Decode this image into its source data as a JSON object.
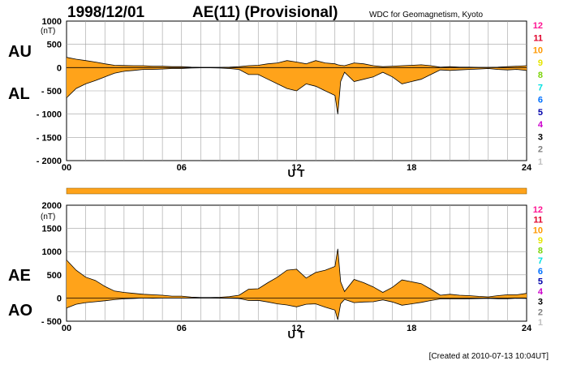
{
  "header": {
    "date": "1998/12/01",
    "title": "AE(11) (Provisional)",
    "source": "WDC for Geomagnetism, Kyoto"
  },
  "footer": {
    "created": "[Created at 2010-07-13 10:04UT]"
  },
  "labels": {
    "au": "AU",
    "al": "AL",
    "ae": "AE",
    "ao": "AO",
    "unit": "(nT)",
    "xlabel": "U T"
  },
  "stations": {
    "labels": [
      "12",
      "11",
      "10",
      "9",
      "8",
      "7",
      "6",
      "5",
      "4",
      "3",
      "2",
      "1"
    ],
    "colors": [
      "#ff1493",
      "#e0002a",
      "#ff9900",
      "#e6e600",
      "#7cd40a",
      "#00e0e0",
      "#0070ff",
      "#0000aa",
      "#cc00cc",
      "#000000",
      "#808080",
      "#c0c0c0"
    ]
  },
  "colors": {
    "fill": "#ffa31a",
    "grid": "#a0a0a0",
    "availability_bar": "#ffa31a"
  },
  "chart_data": [
    {
      "type": "area",
      "title": "AU / AL",
      "ylabel": "(nT)",
      "xlabel": "U T",
      "xlim": [
        0,
        24
      ],
      "ylim": [
        -2000,
        1000
      ],
      "xticks": [
        "00",
        "06",
        "12",
        "18",
        "24"
      ],
      "yticks": [
        "1000",
        "500",
        "0",
        "- 500",
        "- 1000",
        "- 1500",
        "- 2000"
      ],
      "ytick_values": [
        1000,
        500,
        0,
        -500,
        -1000,
        -1500,
        -2000
      ],
      "x": [
        0,
        0.5,
        1,
        1.5,
        2,
        2.5,
        3,
        3.5,
        4,
        4.5,
        5,
        5.5,
        6,
        6.5,
        7,
        7.5,
        8,
        8.5,
        9,
        9.5,
        10,
        10.5,
        11,
        11.5,
        12,
        12.5,
        13,
        13.5,
        14,
        14.15,
        14.3,
        14.5,
        15,
        15.5,
        16,
        16.5,
        17,
        17.5,
        18,
        18.5,
        19,
        19.5,
        20,
        20.5,
        21,
        21.5,
        22,
        22.5,
        23,
        23.5,
        24
      ],
      "series": [
        {
          "name": "AU",
          "values": [
            220,
            180,
            150,
            120,
            80,
            50,
            45,
            40,
            40,
            30,
            30,
            20,
            20,
            10,
            5,
            5,
            5,
            10,
            20,
            40,
            50,
            80,
            100,
            150,
            120,
            80,
            150,
            100,
            80,
            60,
            50,
            40,
            100,
            80,
            40,
            20,
            30,
            40,
            50,
            60,
            40,
            10,
            20,
            10,
            10,
            5,
            5,
            10,
            20,
            30,
            40
          ]
        },
        {
          "name": "AL",
          "values": [
            -650,
            -450,
            -350,
            -280,
            -200,
            -120,
            -80,
            -60,
            -40,
            -40,
            -30,
            -20,
            -20,
            -10,
            -5,
            -5,
            -10,
            -20,
            -40,
            -150,
            -150,
            -250,
            -350,
            -450,
            -500,
            -350,
            -400,
            -500,
            -600,
            -1000,
            -300,
            -100,
            -300,
            -250,
            -200,
            -100,
            -200,
            -350,
            -300,
            -250,
            -150,
            -50,
            -60,
            -50,
            -40,
            -30,
            -20,
            -40,
            -50,
            -40,
            -60
          ]
        }
      ]
    },
    {
      "type": "area",
      "title": "AE / AO",
      "ylabel": "(nT)",
      "xlabel": "U T",
      "xlim": [
        0,
        24
      ],
      "ylim": [
        -500,
        2000
      ],
      "xticks": [
        "00",
        "06",
        "12",
        "18",
        "24"
      ],
      "yticks": [
        "2000",
        "1500",
        "1000",
        "500",
        "0",
        "- 500"
      ],
      "ytick_values": [
        2000,
        1500,
        1000,
        500,
        0,
        -500
      ],
      "x": [
        0,
        0.5,
        1,
        1.5,
        2,
        2.5,
        3,
        3.5,
        4,
        4.5,
        5,
        5.5,
        6,
        6.5,
        7,
        7.5,
        8,
        8.5,
        9,
        9.5,
        10,
        10.5,
        11,
        11.5,
        12,
        12.5,
        13,
        13.5,
        14,
        14.15,
        14.3,
        14.5,
        15,
        15.5,
        16,
        16.5,
        17,
        17.5,
        18,
        18.5,
        19,
        19.5,
        20,
        20.5,
        21,
        21.5,
        22,
        22.5,
        23,
        23.5,
        24
      ],
      "series": [
        {
          "name": "AE",
          "values": [
            820,
            600,
            450,
            380,
            250,
            150,
            120,
            100,
            80,
            70,
            60,
            40,
            40,
            20,
            10,
            10,
            15,
            30,
            60,
            190,
            200,
            330,
            450,
            600,
            620,
            430,
            550,
            600,
            680,
            1060,
            350,
            140,
            400,
            330,
            240,
            120,
            230,
            390,
            350,
            310,
            190,
            60,
            80,
            60,
            50,
            35,
            25,
            50,
            70,
            70,
            100
          ]
        },
        {
          "name": "AO",
          "values": [
            -215,
            -135,
            -100,
            -80,
            -60,
            -35,
            -18,
            -10,
            0,
            -5,
            0,
            0,
            0,
            0,
            0,
            0,
            -3,
            -5,
            -10,
            -55,
            -50,
            -85,
            -125,
            -150,
            -190,
            -135,
            -125,
            -200,
            -260,
            -470,
            -125,
            -30,
            -100,
            -85,
            -80,
            -40,
            -85,
            -155,
            -125,
            -95,
            -55,
            -20,
            -20,
            -20,
            -15,
            -12,
            -8,
            -15,
            -15,
            -5,
            -10
          ]
        }
      ]
    }
  ]
}
